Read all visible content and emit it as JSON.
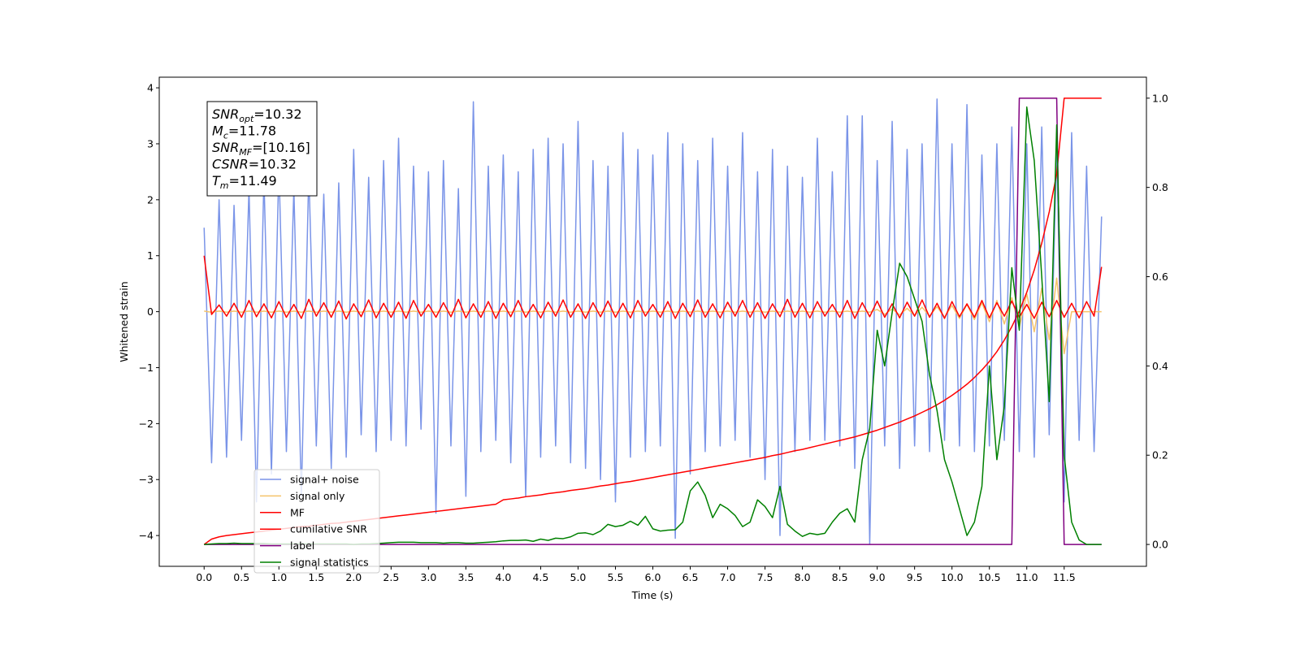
{
  "chart_data": {
    "type": "line",
    "xlabel": "Time (s)",
    "ylabel": "Whitened strain",
    "xlim": [
      -0.6,
      12.6
    ],
    "ylim": [
      -4.55,
      4.19
    ],
    "y2lim": [
      -0.049,
      1.047
    ],
    "xticks": [
      {
        "value": 0,
        "label": "0.0"
      },
      0.5,
      {
        "value": 1,
        "label": "1.0"
      },
      1.5,
      {
        "value": 2,
        "label": "2.0"
      },
      2.5,
      {
        "value": 3,
        "label": "3.0"
      },
      3.5,
      {
        "value": 4,
        "label": "4.0"
      },
      4.5,
      {
        "value": 5,
        "label": "5.0"
      },
      5.5,
      {
        "value": 6,
        "label": "6.0"
      },
      6.5,
      {
        "value": 7,
        "label": "7.0"
      },
      7.5,
      {
        "value": 8,
        "label": "8.0"
      },
      8.5,
      {
        "value": 9,
        "label": "9.0"
      },
      9.5,
      {
        "value": 10,
        "label": "10.0"
      },
      10.5,
      {
        "value": 11,
        "label": "11.0"
      },
      11.5
    ],
    "yticks": [
      {
        "value": -4,
        "label": "−4"
      },
      {
        "value": -3,
        "label": "−3"
      },
      {
        "value": -2,
        "label": "−2"
      },
      {
        "value": -1,
        "label": "−1"
      },
      0,
      1,
      2,
      3,
      4
    ],
    "y2ticks": [
      {
        "value": 0,
        "label": "0.0"
      },
      0.2,
      0.4,
      0.6,
      0.8,
      {
        "value": 1,
        "label": "1.0"
      }
    ],
    "legend": "lower left",
    "annotations": [
      {
        "symbol": "SNR",
        "subscript": "opt",
        "text": "=10.32"
      },
      {
        "symbol": "M",
        "subscript": "c",
        "text": "=11.78"
      },
      {
        "symbol": "SNR",
        "subscript": "MF",
        "text": "=[10.16]"
      },
      {
        "symbol": "CSNR",
        "text": "=10.32"
      },
      {
        "symbol": "T",
        "subscript": "m",
        "text": "=11.49"
      }
    ],
    "x": [
      0,
      0.1,
      0.2,
      0.3,
      0.4,
      0.5,
      0.6,
      0.7,
      0.8,
      0.9,
      1,
      1.1,
      1.2,
      1.3,
      1.4,
      1.5,
      1.6,
      1.7,
      1.8,
      1.9,
      2,
      2.1,
      2.2,
      2.3,
      2.4,
      2.5,
      2.6,
      2.7,
      2.8,
      2.9,
      3,
      3.1,
      3.2,
      3.3,
      3.4,
      3.5,
      3.6,
      3.7,
      3.8,
      3.9,
      4,
      4.1,
      4.2,
      4.3,
      4.4,
      4.5,
      4.6,
      4.7,
      4.8,
      4.9,
      5,
      5.1,
      5.2,
      5.3,
      5.4,
      5.5,
      5.6,
      5.7,
      5.8,
      5.9,
      6,
      6.1,
      6.2,
      6.3,
      6.4,
      6.5,
      6.6,
      6.7,
      6.8,
      6.9,
      7,
      7.1,
      7.2,
      7.3,
      7.4,
      7.5,
      7.6,
      7.7,
      7.8,
      7.9,
      8,
      8.1,
      8.2,
      8.3,
      8.4,
      8.5,
      8.6,
      8.7,
      8.8,
      8.9,
      9,
      9.1,
      9.2,
      9.3,
      9.4,
      9.5,
      9.6,
      9.7,
      9.8,
      9.9,
      10,
      10.1,
      10.2,
      10.3,
      10.4,
      10.5,
      10.6,
      10.7,
      10.8,
      10.9,
      11,
      11.1,
      11.2,
      11.3,
      11.4,
      11.5,
      11.6,
      11.7,
      11.8,
      11.9,
      12
    ],
    "series": [
      {
        "name": "signal+ noise",
        "color": "#7a94e8",
        "values": [
          1.5,
          -2.7,
          2.0,
          -2.6,
          1.9,
          -2.3,
          2.2,
          -3.4,
          2.4,
          -2.9,
          2.6,
          -2.5,
          2.2,
          -3.3,
          2.5,
          -2.4,
          2.1,
          -2.8,
          2.3,
          -2.6,
          2.9,
          -2.2,
          2.4,
          -2.5,
          2.7,
          -2.3,
          3.1,
          -2.4,
          2.6,
          -2.1,
          2.5,
          -3.6,
          2.7,
          -2.4,
          2.2,
          -3.3,
          3.75,
          -2.5,
          2.6,
          -2.3,
          2.8,
          -2.7,
          2.5,
          -3.3,
          2.9,
          -2.6,
          3.1,
          -2.4,
          3.0,
          -2.7,
          3.4,
          -2.8,
          2.7,
          -3.0,
          2.6,
          -3.4,
          3.2,
          -2.6,
          2.9,
          -2.5,
          2.8,
          -2.4,
          3.2,
          -4.05,
          3.0,
          -2.9,
          2.7,
          -2.5,
          3.1,
          -2.4,
          2.6,
          -2.3,
          3.2,
          -2.6,
          2.5,
          -3.0,
          2.9,
          -4.0,
          2.6,
          -2.5,
          2.4,
          -2.3,
          3.1,
          -2.3,
          2.5,
          -2.4,
          3.5,
          -2.8,
          3.5,
          -4.15,
          2.7,
          -2.4,
          3.4,
          -2.8,
          2.9,
          -2.4,
          3.0,
          -2.5,
          3.8,
          -2.3,
          3.0,
          -2.4,
          3.7,
          -2.5,
          2.8,
          -2.4,
          3.0,
          -2.3,
          3.3,
          -2.5,
          3.0,
          -2.6,
          3.3,
          -2.2,
          2.9,
          -3.4,
          3.2,
          -2.3,
          2.6,
          -2.5,
          1.7
        ]
      },
      {
        "name": "signal only",
        "color": "#f5c36a",
        "values": [
          0.01,
          -0.01,
          0.01,
          -0.01,
          0.01,
          -0.01,
          0.01,
          -0.01,
          0.01,
          -0.01,
          0.01,
          -0.01,
          0.01,
          -0.01,
          0.01,
          -0.01,
          0.01,
          -0.01,
          0.01,
          -0.01,
          0.01,
          -0.01,
          0.01,
          -0.01,
          0.01,
          -0.01,
          0.01,
          -0.01,
          0.01,
          -0.01,
          0.01,
          -0.01,
          0.01,
          -0.01,
          0.01,
          -0.01,
          0.01,
          -0.01,
          0.01,
          -0.01,
          0.01,
          -0.01,
          0.01,
          -0.01,
          0.01,
          -0.01,
          0.01,
          -0.01,
          0.01,
          -0.01,
          0.01,
          -0.01,
          0.01,
          -0.01,
          0.01,
          -0.01,
          0.01,
          -0.01,
          0.01,
          -0.01,
          0.01,
          -0.01,
          0.01,
          -0.01,
          0.01,
          -0.01,
          0.01,
          -0.01,
          0.01,
          -0.01,
          0.01,
          -0.01,
          0.01,
          -0.01,
          0.01,
          -0.01,
          0.01,
          -0.01,
          0.01,
          -0.01,
          0.01,
          -0.01,
          0.01,
          -0.01,
          0.01,
          -0.01,
          0.01,
          -0.01,
          0.01,
          -0.01,
          0.04,
          -0.05,
          0.05,
          -0.06,
          0.06,
          -0.07,
          0.08,
          -0.08,
          0.09,
          -0.1,
          0.11,
          -0.12,
          0.13,
          -0.14,
          0.16,
          -0.18,
          0.2,
          -0.22,
          0.25,
          -0.28,
          0.32,
          -0.36,
          0.42,
          -0.5,
          0.6,
          -0.75,
          0.0,
          0.0,
          0.0,
          0.0,
          0.0
        ]
      },
      {
        "name": "MF",
        "color": "#ff0000",
        "values": [
          1.0,
          -0.05,
          0.12,
          -0.08,
          0.15,
          -0.1,
          0.2,
          -0.09,
          0.14,
          -0.11,
          0.18,
          -0.1,
          0.13,
          -0.12,
          0.22,
          -0.08,
          0.16,
          -0.1,
          0.19,
          -0.13,
          0.14,
          -0.09,
          0.21,
          -0.11,
          0.15,
          -0.1,
          0.17,
          -0.12,
          0.2,
          -0.08,
          0.13,
          -0.1,
          0.16,
          -0.09,
          0.22,
          -0.11,
          0.14,
          -0.1,
          0.18,
          -0.12,
          0.15,
          -0.09,
          0.2,
          -0.1,
          0.13,
          -0.11,
          0.17,
          -0.08,
          0.21,
          -0.1,
          0.14,
          -0.12,
          0.16,
          -0.09,
          0.19,
          -0.1,
          0.15,
          -0.11,
          0.2,
          -0.08,
          0.13,
          -0.1,
          0.18,
          -0.12,
          0.15,
          -0.09,
          0.21,
          -0.1,
          0.14,
          -0.11,
          0.17,
          -0.08,
          0.2,
          -0.1,
          0.16,
          -0.12,
          0.14,
          -0.09,
          0.22,
          -0.1,
          0.15,
          -0.11,
          0.18,
          -0.08,
          0.13,
          -0.1,
          0.2,
          -0.12,
          0.16,
          -0.09,
          0.19,
          -0.1,
          0.14,
          -0.11,
          0.17,
          -0.08,
          0.21,
          -0.1,
          0.15,
          -0.12,
          0.18,
          -0.09,
          0.14,
          -0.1,
          0.2,
          -0.11,
          0.16,
          -0.08,
          0.19,
          -0.1,
          0.13,
          -0.12,
          0.17,
          -0.09,
          0.2,
          -0.1,
          0.15,
          -0.11,
          0.18,
          -0.08,
          0.8
        ]
      },
      {
        "name": "cumilative SNR",
        "color": "#ff0000",
        "axis": "y2",
        "values": [
          0.0,
          0.012,
          0.017,
          0.02,
          0.022,
          0.024,
          0.026,
          0.028,
          0.03,
          0.032,
          0.034,
          0.036,
          0.038,
          0.04,
          0.041,
          0.043,
          0.045,
          0.047,
          0.048,
          0.05,
          0.052,
          0.054,
          0.056,
          0.058,
          0.06,
          0.062,
          0.064,
          0.066,
          0.068,
          0.07,
          0.072,
          0.074,
          0.076,
          0.078,
          0.08,
          0.082,
          0.084,
          0.086,
          0.088,
          0.09,
          0.1,
          0.102,
          0.104,
          0.107,
          0.109,
          0.111,
          0.114,
          0.116,
          0.118,
          0.121,
          0.123,
          0.125,
          0.128,
          0.131,
          0.133,
          0.136,
          0.139,
          0.141,
          0.144,
          0.147,
          0.15,
          0.153,
          0.156,
          0.159,
          0.162,
          0.165,
          0.168,
          0.171,
          0.174,
          0.177,
          0.18,
          0.183,
          0.186,
          0.189,
          0.192,
          0.195,
          0.199,
          0.202,
          0.206,
          0.21,
          0.213,
          0.217,
          0.221,
          0.225,
          0.229,
          0.233,
          0.237,
          0.241,
          0.246,
          0.251,
          0.256,
          0.262,
          0.268,
          0.274,
          0.281,
          0.288,
          0.296,
          0.304,
          0.313,
          0.323,
          0.334,
          0.346,
          0.359,
          0.374,
          0.391,
          0.41,
          0.432,
          0.458,
          0.488,
          0.523,
          0.565,
          0.615,
          0.675,
          0.745,
          0.83,
          1.0,
          1.0,
          1.0,
          1.0,
          1.0,
          1.0
        ]
      },
      {
        "name": "label",
        "color": "#800080",
        "axis": "y2",
        "values": [
          0,
          0,
          0,
          0,
          0,
          0,
          0,
          0,
          0,
          0,
          0,
          0,
          0,
          0,
          0,
          0,
          0,
          0,
          0,
          0,
          0,
          0,
          0,
          0,
          0,
          0,
          0,
          0,
          0,
          0,
          0,
          0,
          0,
          0,
          0,
          0,
          0,
          0,
          0,
          0,
          0,
          0,
          0,
          0,
          0,
          0,
          0,
          0,
          0,
          0,
          0,
          0,
          0,
          0,
          0,
          0,
          0,
          0,
          0,
          0,
          0,
          0,
          0,
          0,
          0,
          0,
          0,
          0,
          0,
          0,
          0,
          0,
          0,
          0,
          0,
          0,
          0,
          0,
          0,
          0,
          0,
          0,
          0,
          0,
          0,
          0,
          0,
          0,
          0,
          0,
          0,
          0,
          0,
          0,
          0,
          0,
          0,
          0,
          0,
          0,
          0,
          0,
          0,
          0,
          0,
          0,
          0,
          0,
          0,
          1,
          1,
          1,
          1,
          1,
          1,
          0,
          0,
          0,
          0,
          0,
          0
        ]
      },
      {
        "name": "signal statistics",
        "color": "#008000",
        "axis": "y2",
        "values": [
          0.0,
          0.001,
          0.002,
          0.002,
          0.003,
          0.002,
          0.002,
          0.002,
          0.002,
          0.001,
          0.001,
          0.001,
          0.001,
          0.001,
          0.001,
          0.001,
          0.001,
          0.001,
          0.001,
          0.001,
          0.0,
          0.001,
          0.001,
          0.002,
          0.003,
          0.004,
          0.005,
          0.005,
          0.005,
          0.004,
          0.004,
          0.004,
          0.003,
          0.004,
          0.004,
          0.003,
          0.003,
          0.004,
          0.005,
          0.006,
          0.008,
          0.009,
          0.009,
          0.01,
          0.007,
          0.012,
          0.009,
          0.014,
          0.013,
          0.017,
          0.025,
          0.026,
          0.022,
          0.03,
          0.045,
          0.04,
          0.043,
          0.052,
          0.043,
          0.063,
          0.035,
          0.03,
          0.032,
          0.033,
          0.05,
          0.12,
          0.14,
          0.11,
          0.06,
          0.09,
          0.08,
          0.065,
          0.04,
          0.05,
          0.1,
          0.085,
          0.06,
          0.13,
          0.045,
          0.03,
          0.018,
          0.025,
          0.022,
          0.025,
          0.05,
          0.07,
          0.08,
          0.05,
          0.19,
          0.26,
          0.48,
          0.4,
          0.52,
          0.63,
          0.6,
          0.55,
          0.5,
          0.38,
          0.3,
          0.19,
          0.14,
          0.08,
          0.02,
          0.05,
          0.13,
          0.4,
          0.19,
          0.31,
          0.62,
          0.48,
          0.98,
          0.86,
          0.6,
          0.32,
          0.94,
          0.2,
          0.05,
          0.01,
          0.0,
          0.0,
          0.0
        ]
      }
    ]
  }
}
